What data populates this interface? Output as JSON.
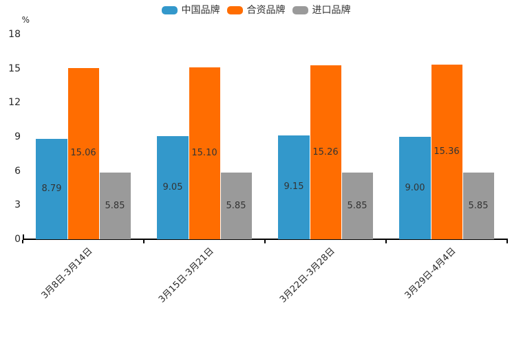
{
  "chart_data": {
    "type": "bar",
    "title": "",
    "ylabel": "%",
    "xlabel": "",
    "ylim": [
      0,
      18
    ],
    "yticks": [
      0,
      3,
      6,
      9,
      12,
      15,
      18
    ],
    "grid": false,
    "legend_position": "top",
    "value_labels": "inside-center, 2 decimals",
    "categories": [
      "3月8日-3月14日",
      "3月15日-3月21日",
      "3月22日-3月28日",
      "3月29日-4月4日"
    ],
    "series": [
      {
        "name": "中国品牌",
        "color": "#3398CB",
        "values": [
          8.79,
          9.05,
          9.15,
          9.0
        ]
      },
      {
        "name": "合资品牌",
        "color": "#FF6D01",
        "values": [
          15.06,
          15.1,
          15.26,
          15.36
        ]
      },
      {
        "name": "进口品牌",
        "color": "#9A9A9A",
        "values": [
          5.85,
          5.85,
          5.85,
          5.85
        ]
      }
    ]
  },
  "colors": {
    "axis": "#000000",
    "tick_text": "#262626",
    "value_text": "#333333",
    "background": "#ffffff"
  }
}
